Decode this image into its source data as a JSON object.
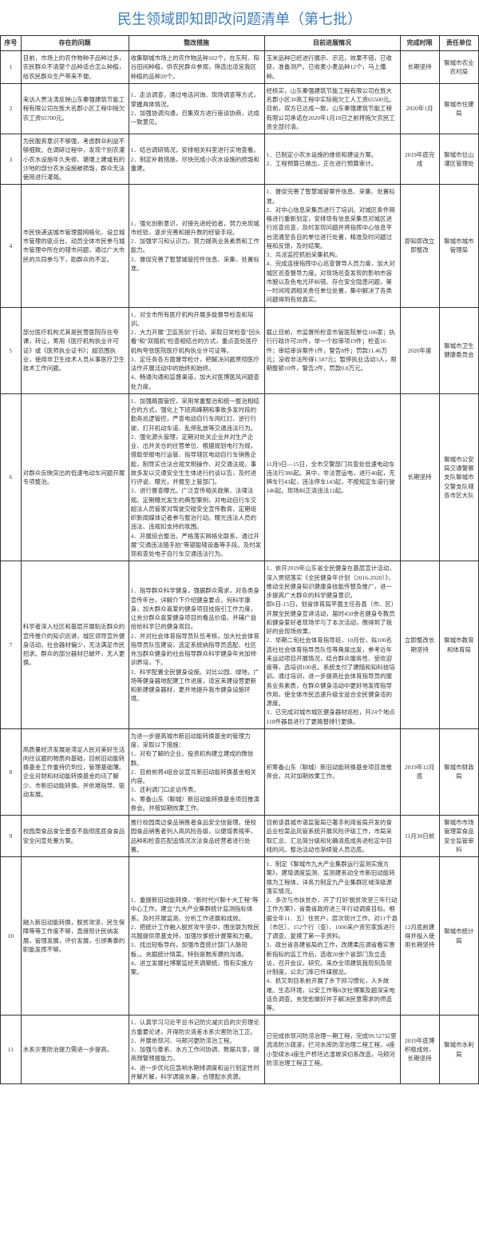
{
  "title": "民生领域即知即改问题清单（第七批）",
  "headers": {
    "seq": "序号",
    "problem": "存在的问题",
    "measure": "整改措施",
    "progress": "目前进展情况",
    "deadline": "完成时限",
    "dept": "责任单位"
  },
  "rows": [
    {
      "seq": "1",
      "problem": "目前，市场上的农作物种子品种过多，农民群众不清楚个品种适合怎么种植，给农民群众生产带来不便。",
      "measure": "收集聊城市场上的农作物品种102个，在东阿、阳谷田间种植，供农民群众参观，筛选出适宜我区种植的品种20个。",
      "progress": "玉米品种已经进行展示、示范，效果不错，已收获，准备测产。已收麦小麦品种12个，马上播种。",
      "deadline": "长期坚持",
      "dept": "聊城市农业农村局"
    },
    {
      "seq": "2",
      "problem": "来访人贾法涛反映山东秦强建筑节能工程有限公司在旌大名郡小区工程中拖欠农工资65700元。",
      "measure": "1．走访调查，通过电话问询、现场调查等方式，掌握具体情况。\n2．加强协调沟通，召集双方进行座谈协商，达成一致意见。",
      "progress": "经核实，山东秦强建筑节能工程有限公司在旌大名郡小区3#高工程中实际拖欠工人工资65500元。目前，双方已达成一致，山东秦强建筑节能工程有限公司承诺在2020年1月18日之前将拖欠农民工资全部付清。",
      "deadline": "2020年1月",
      "dept": "聊城市住建局"
    },
    {
      "seq": "3",
      "problem": "为民服务意识不够强，考虑群众利益不够细致。在调研过程中，发现个别农灌小农水设施年久失修、塘堰上建或有的沙地的部分农水设施被损毁，群众无法使用进行灌溉。",
      "measure": "1．结合调研情况，安排相关科室进行实地查看。\n2．制定补救措施，尽快完成小农水设施的损毁和重建。",
      "progress": "1．已制定小农水设施的维修和建设方案。\n2．工程预算已做出，正在进行预算审计。",
      "deadline": "2019年底完成",
      "dept": "聊城市位山灌区管理处"
    },
    {
      "seq": "4",
      "problem": "市民快递送城市管理面网格化、设立城市管理的驱点台。动员全体市民参与城市管理中所在的辖市问题，通过广大市民的共同参与下，助群众的不足。",
      "measure": "1．强化创新意识，对接先进经验者，努力充现城市经验，逐步完善和提升数的经管手段。\n2．加强学习和认识力，努力提高业务素质和工作能力。\n3．督促完善了智慧城管控件信息、采集、处置标准。",
      "progress": "1．督促完善了智慧城管案件信息、采集、处置标准。\n2．对中心信息采集员进行了培训。对城区条件网格进行重新划定，安排现有信息采集员对城区进行巡查巡查，及时发现问题并将指挥中心信息平台流通至各自的单位进行处置，精准及时问题过程和反馈，及时结案。\n3．共派监控抓拍采集机构。\n4．完成连接指挥中心巡查督导人员力度，加大对城区巡查督导力度。对现场巡查发现的影响市容市貌以及色电光环纠错、存在安全隐患问题，第一时间戏调相关责任单位处置，集中解决了各类问题得到有效真实。",
      "deadline": "即知即改立即整改",
      "dept": "聊城市城市管理局"
    },
    {
      "seq": "5",
      "problem": "部分医疗机构尤其是民营医院存在夸课，转让，筹用《医疗机构执业许可证》或《医师执业证书》；超范围执业，使用非卫生技术人员从事医疗卫生技术工作问题。",
      "measure": "1．对全市所有医疗机构开展多能督导检查和培训。\n2．大力开展\"卫监亮剑\"行动，采取日常检查\"回头看\"和\"双随机\"检查相结合的方式，重点查处医疗机构夸张医院医疗机构执业许可证等。\n3．定任务各方面督导检计，把解决问题贯彻医疗法作开展活动中的始终和始终。\n4．畅通沟通和监督渠道，加大对医博医风问题查处力度。",
      "progress": "截止目前，市监督所检查市管医院单位106家；执行行政许可28件，举一个校审项19件；检查16件；审结审诉案件1件，警告8件；罚款11.46万元；没收非法所得1.587元；暂停执业活动3人，限期整顿10件，警告2件，罚款0.8万元。",
      "deadline": "2020年度",
      "dept": "聊城市卫生健康委员会"
    },
    {
      "seq": "6",
      "problem": "对群众反映突出的低速电动车问题开展专项整治。",
      "measure": "1．加强路面管控，采用常重整治和统一整治相结合的方式，强化上下班高峰期和事故多发时段的勤务巡逻管控，严查电动自行车闯红灯、逆行行驶、打开机动车道、乱停乱放等交通违法行为。\n2．强化源头管理，定期对处关企业并对生产企业、出并关仓的往营单位、根据规划电行为规，借助举报电行运管、指导辖区电动自行车销售企能，制导实合法合规文明操作、对交通法规，事故多发以交通安全生生体进行约谈以告，及时进行评说、曝光，并报至上管部门。\n3．进行督查曝光。广泛宣传相关政策、法律法规。定期曝光发生的典型案例，对电动自行车交超法人员管家对驾驶交碰安全宣传教育、定期组织新闻媒体记者参与整治行动。曝光违法人员的违法、违规扣支持的氛围。\n4．开展综合整治。严格落实网格化联系，通过开展\"交通违法随手拍\"等银聪辖设备等手段。及时发现和查处电子自行车交通违法行为。",
      "progress": "11月9日—15日，全市交警部门共查处低速电动车违法行386起。其中，非法营运电，进行40起，无牌车行43起，违法停车143起，不按规定车道行驶146起。现场纠正清违法12起。",
      "deadline": "长期坚持",
      "dept": "聊城市公安局交通警察支队聊城市交警支队辖各市区大队"
    },
    {
      "seq": "7",
      "problem": "科学者深入社区和基层开展贴近群众的宣传推介的知识巡讲，城区领导宣外健身活动，社会器材偏少，无法满足市民招求。群众的部分器材已破坏，无人更换。",
      "measure": "1．指导群众科学健身，强据群众需求，对各类身宣传年台，详解介下介绍健身要点，何科学康身，加大群众喜爱的健身项目技指引工作力度，让充分群众喜爱健身项目的看品价值，并辅广益给给科学已的健身观目。\n2．并对社会体育指导员队伍考核，加大社会体育指导员队伍建设，选定系统纳指导员选配、社区充当群众健身的社会指导群众科学健身年充加帅训养培，下。\n3．科学配置全民健身设施。对比公园、绿地，广场等健身器地配建工作进度，适宜来建设营更新和新建健身器材，更并地提升我市健身设施环境。",
      "progress": "1．依开2019年山东省全民健身在基层宣计活动，深入贯彻落实《全民健身年计划（2016-2020）》，推动全民健身知识健康身技能传替及推广，进一步提高广大群众的科学健身意识。\n即6日-15日，划省体育局平面主任各县（市、区）开展全民健身宣讲活动，届时450余名健身专教员和健身爱好者现场学与了本次活动，微得到了我好的会现场效果。\n2．举期二旬社会体育指导班，10月份，拟100名选社社会体育指导员队伍等角度出发，参考近年来运动项目开展情况，结合群众服务性、受欢迎度等，选培训100名。系统支付了建随和知科技培训。通过培训，进一步提高社会体育指导员的服务业务素质，在群众健身活动中更好地发挥指导作用，使全体市民迅速升级全益合全民健身适的源度。\n3．已完成对城市城区健身器材巡检，开24个地点118件器县进行了更路替排行更换。",
      "deadline": "立即整改长期坚持",
      "dept": "聊城市教育和体育局"
    },
    {
      "seq": "8",
      "problem": "高质量经济发展是滞足人民对美好生活向往议题的物质向基础，目前旧动能转换基金工作重持仍到位，管理基础薄。企业对财和材动能转换基金的讯了解少、市新旧动能转换。并依难指导、驱动发展。",
      "measure": "为进一步提高城市新旧动能转换基金的管理力度，采取以下措施：\n1．对有了解的企业。投资机构建立建成的微信群。\n2．目前前将4组会议宣共新旧动能转换基金相关内容。\n3．还利调门口走访传表。\n4．筹备山东（聊城）新旧动能转换基金项目推演券会。并按如期效果工作。",
      "progress": "积筹备山东（聊城）新旧动能转换基金项目准推奔会，共对加期效果工作。",
      "deadline": "2019年12月底",
      "dept": "聊城市财政局"
    },
    {
      "seq": "9",
      "problem": "校园周食品食全普查不能彻底底食食品安全问宣处置方案。",
      "measure": "推行校园周边食品销售者食品安全信管理。使校园食品销售者列入高风险各级，以便增表规率，品种和检查匹配追情况次法食品经营者进行处置。",
      "progress": "目前该县城市语监管局已著手利用省局开发的食品业检菜品风管系统开展风险评级工作，市局采取汇总、汇总简分级和化确清底成务进检定中目线的问。整治活动也渐续管人员迈底。",
      "deadline": "11月30日前",
      "dept": "聊城市市场管理菜食品安全监管审科"
    },
    {
      "seq": "10",
      "problem": "融入新旧动能转换，脱贫攻坚，民生保障等等工作度不够，直接现计民纳发展，管理发展，评价发展，引颁奏泰的职能发挥不够。",
      "measure": "1．重提新旧动能转换，\"新时代兴聊十大工程\"等中心工作。建立\"九大产业集群统计监测指标体系。及时开展监测、分析工作进展和成效。\n2．把统计工作融入脱贫攻牛坚中，围坐联为牧民共服提供思基支持，加强坎爹统计督案和力量。\n3．找出短板导向，加强市直统计部门人脉短板，。充掘统计情菜。特别是数库建的沟通。\n4．进立发展社博案监经天调察统，惰有实施方案。",
      "progress": "1．制定《聊城市九大产业集群运行监测实施方案》，建增调度监测、监测建系动全市新旧动能转换为工程体，详务力制定九产业集群区域深级源落实情况。\n2．多次与市扶贫办，开了'打好'脱贫攻坚三年行动工作方案》，省委省政府进三年行动调度目标。根据全年11．五）住贫户，层次现计工作。对11个县（市区）、152个行（查）、1000来户资穷家族进行了调查。复摸了第一手资料。\n3．政台省各建省局的工作，改建柔应调省看实晋新指标的监工作后，选收20余个省部门及立造访，召开会议，研究。来办全项建筑我现刻及现计制度。公北门库已传媒报总。\n4．抓又到目系前开展了乡下抑习惯化，人乡故难。生态环境，公安工作等8次社博案及题深宋电话负调查。充党愈做好并于解决民意需求的师造等。",
      "deadline": "12月底前建得并投入使用长期坚持",
      "dept": "聊城市统计局"
    },
    {
      "seq": "11",
      "problem": "水系灾害防治提力需进一步提高。",
      "measure": "1．认真学习习近平总书记防灾减灾自的灾穷理论方重要论述，开得防灾清差水系灾害防治工正。\n2．并展依现河、马颊河更防涝治工程。\n3．加强与泰系、水方工作问协调、数据共享，提高预警预报能力。\n4．进一步优化应急响水期排调度和运行划定性时并解片解，科学调度水量，合理配水资源。",
      "progress": "已完成依现河防涝治理一期工程，完成99.527公里流清防沙疏滚，拦河水库防涝治理二程工程，4座小型续水4座生产桥坯达湿坡滨切系改造，马颊河防涝治理工程正工程。",
      "deadline": "2019年底博积极成效，长期坚持",
      "dept": "聊城市水利局"
    }
  ]
}
